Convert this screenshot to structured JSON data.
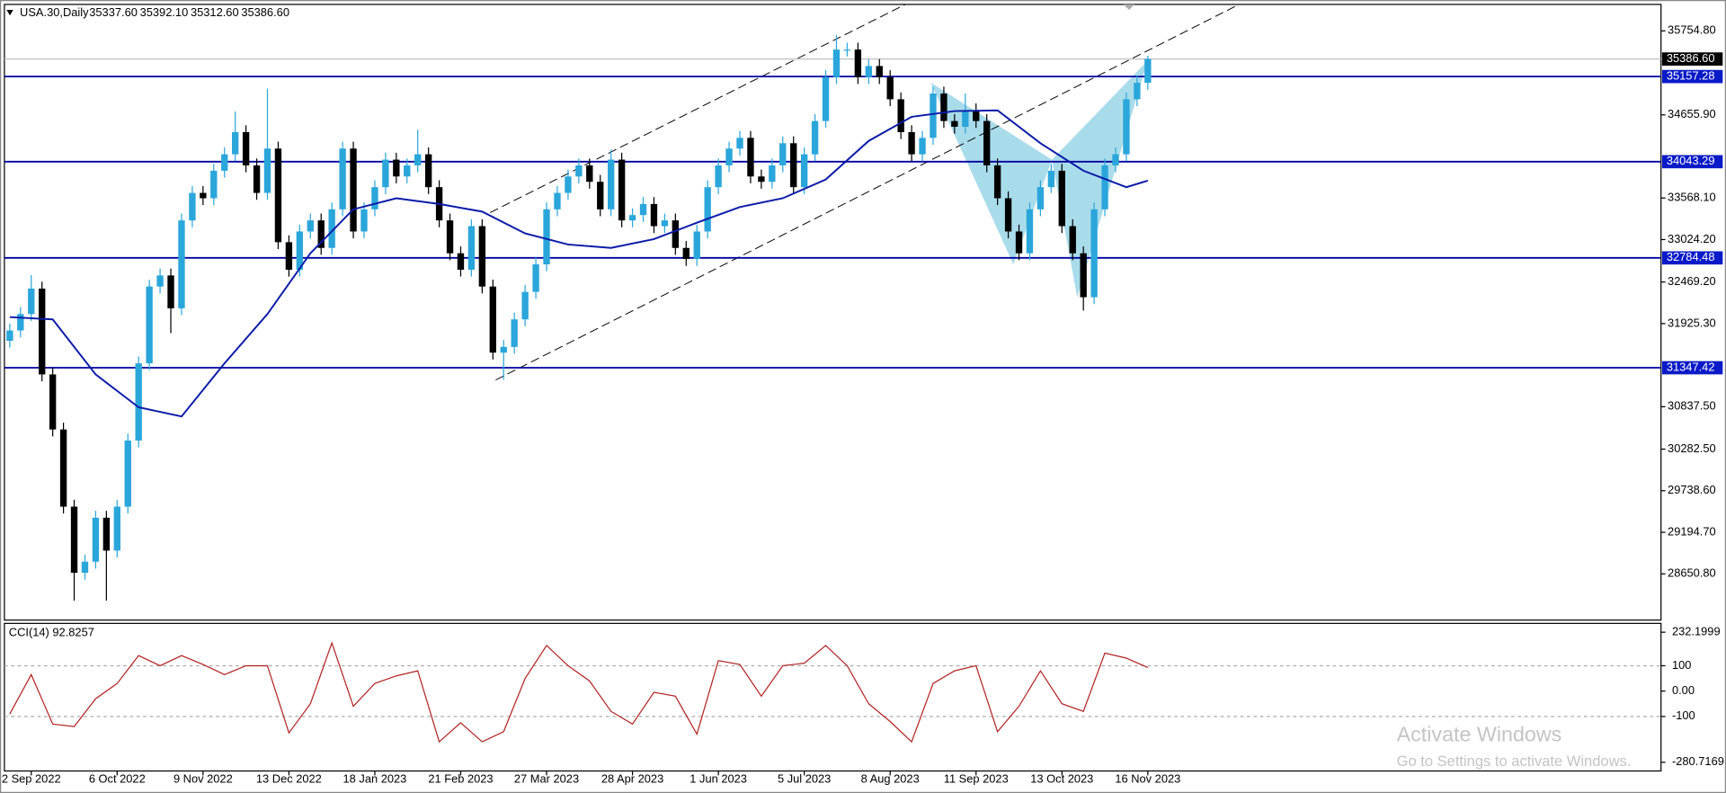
{
  "header": {
    "symbol": "USA.30,Daily",
    "quote": [
      "35337.60",
      "35392.10",
      "35312.60",
      "35386.60"
    ]
  },
  "chart_data": [
    {
      "type": "candlestick",
      "up_color": "#2aa6db",
      "down_color": "#000000",
      "xlim": [
        -0.5,
        153.8
      ],
      "xticks": [
        {
          "value": 2,
          "label": "2 Sep 2022"
        },
        {
          "value": 10,
          "label": "6 Oct 2022"
        },
        {
          "value": 18,
          "label": "9 Nov 2022"
        },
        {
          "value": 26,
          "label": "13 Dec 2022"
        },
        {
          "value": 34,
          "label": "18 Jan 2023"
        },
        {
          "value": 42,
          "label": "21 Feb 2023"
        },
        {
          "value": 50,
          "label": "27 Mar 2023"
        },
        {
          "value": 58,
          "label": "28 Apr 2023"
        },
        {
          "value": 66,
          "label": "1 Jun 2023"
        },
        {
          "value": 74,
          "label": "5 Jul 2023"
        },
        {
          "value": 82,
          "label": "8 Aug 2023"
        },
        {
          "value": 90,
          "label": "11 Sep 2023"
        },
        {
          "value": 98,
          "label": "13 Oct 2023"
        },
        {
          "value": 106,
          "label": "16 Nov 2023"
        }
      ],
      "ylim": [
        28046,
        36101
      ],
      "yticks": [
        {
          "value": 35754.8,
          "label": "35754.80"
        },
        {
          "value": 34655.9,
          "label": "34655.90"
        },
        {
          "value": 33568.1,
          "label": "33568.10"
        },
        {
          "value": 33024.2,
          "label": "33024.20"
        },
        {
          "value": 32469.2,
          "label": "32469.20"
        },
        {
          "value": 31925.3,
          "label": "31925.30"
        },
        {
          "value": 30837.5,
          "label": "30837.50"
        },
        {
          "value": 30282.5,
          "label": "30282.50"
        },
        {
          "value": 29738.6,
          "label": "29738.60"
        },
        {
          "value": 29194.7,
          "label": "29194.70"
        },
        {
          "value": 28650.8,
          "label": "28650.80"
        }
      ],
      "open": [
        31700,
        31835,
        32050,
        32383,
        31260,
        30540,
        29530,
        28665,
        28810,
        29385,
        28955,
        29530,
        30395,
        31405,
        32410,
        32555,
        32125,
        33275,
        33635,
        33565,
        33925,
        34140,
        34430,
        33995,
        33635,
        34215,
        32990,
        32630,
        33130,
        33275,
        32915,
        33420,
        34215,
        33130,
        33420,
        33710,
        34070,
        33850,
        33995,
        34140,
        33710,
        33275,
        32845,
        32630,
        33200,
        32410,
        31545,
        31620,
        31980,
        32340,
        32700,
        33420,
        33635,
        33850,
        33995,
        33780,
        33420,
        34070,
        33275,
        33345,
        33490,
        33200,
        33275,
        32915,
        32770,
        33130,
        33710,
        33995,
        34215,
        34355,
        33850,
        33780,
        33995,
        34285,
        33710,
        34140,
        34575,
        35150,
        35510,
        35510,
        35150,
        35295,
        35150,
        34860,
        34430,
        34140,
        34355,
        34935,
        34575,
        34500,
        34715,
        34575,
        33995,
        33565,
        33130,
        32845,
        33420,
        33710,
        33925,
        33200,
        32845,
        32270,
        33420,
        33995,
        34140,
        34860,
        35075
      ],
      "high": [
        31925,
        32140,
        32560,
        32473,
        31350,
        30630,
        29620,
        28900,
        29475,
        29475,
        29620,
        30485,
        31495,
        32500,
        32645,
        32645,
        33365,
        33725,
        33725,
        34015,
        34230,
        34700,
        34520,
        34085,
        35000,
        34305,
        33080,
        33220,
        33365,
        33365,
        33510,
        34305,
        34305,
        33510,
        33800,
        34160,
        34160,
        34085,
        34460,
        34230,
        33800,
        33365,
        32935,
        33290,
        33290,
        32500,
        31710,
        32070,
        32430,
        32790,
        33510,
        33725,
        33940,
        34085,
        34085,
        33870,
        34200,
        34160,
        33435,
        33580,
        33580,
        33365,
        33365,
        33005,
        33220,
        33800,
        34085,
        34305,
        34445,
        34445,
        33940,
        34085,
        34375,
        34375,
        34230,
        34665,
        35240,
        35700,
        35600,
        35600,
        35385,
        35385,
        35240,
        34950,
        34520,
        34445,
        35025,
        35025,
        34665,
        34935,
        34805,
        34665,
        34085,
        33655,
        33220,
        33510,
        33800,
        34015,
        34015,
        33290,
        32935,
        33510,
        34085,
        34230,
        34950,
        35165,
        35430
      ],
      "low": [
        31610,
        31745,
        31960,
        31170,
        30450,
        29440,
        28300,
        28575,
        28720,
        28300,
        28865,
        29440,
        30305,
        31315,
        32320,
        31800,
        32035,
        33185,
        33475,
        33475,
        33835,
        34050,
        33905,
        33545,
        33545,
        32900,
        32540,
        32540,
        33040,
        32825,
        32825,
        33330,
        33040,
        33040,
        33330,
        33620,
        33760,
        33760,
        33905,
        33620,
        33185,
        32755,
        32540,
        32540,
        32320,
        31455,
        31190,
        31530,
        31890,
        32250,
        32610,
        33330,
        33545,
        33760,
        33690,
        33330,
        33330,
        33185,
        33185,
        33255,
        33110,
        33110,
        32825,
        32680,
        32680,
        33040,
        33620,
        33905,
        34125,
        33760,
        33690,
        33690,
        33905,
        33620,
        33620,
        34050,
        34485,
        35060,
        35420,
        35060,
        35060,
        35060,
        34770,
        34340,
        34050,
        34050,
        34265,
        34485,
        34410,
        34410,
        34485,
        33905,
        33475,
        33040,
        32755,
        32755,
        33330,
        33635,
        33110,
        32755,
        32095,
        32180,
        33330,
        33905,
        34050,
        34770,
        34985
      ],
      "close": [
        31835,
        32050,
        32383,
        31260,
        30540,
        29530,
        28665,
        28810,
        29385,
        28955,
        29530,
        30395,
        31405,
        32410,
        32555,
        32125,
        33275,
        33635,
        33565,
        33925,
        34140,
        34430,
        33995,
        33635,
        34215,
        32990,
        32630,
        33130,
        33275,
        32915,
        33420,
        34215,
        33130,
        33420,
        33710,
        34070,
        33850,
        33995,
        34140,
        33710,
        33275,
        32845,
        32630,
        33200,
        32410,
        31545,
        31620,
        31980,
        32340,
        32700,
        33420,
        33635,
        33850,
        33995,
        33780,
        33420,
        34070,
        33275,
        33345,
        33490,
        33200,
        33275,
        32915,
        32770,
        33130,
        33710,
        33995,
        34215,
        34355,
        33850,
        33780,
        33995,
        34285,
        33710,
        34140,
        34575,
        35150,
        35510,
        35510,
        35150,
        35295,
        35150,
        34860,
        34430,
        34140,
        34355,
        34935,
        34575,
        34500,
        34715,
        34575,
        33995,
        33565,
        33130,
        32845,
        33420,
        33710,
        33925,
        33200,
        32845,
        32270,
        33420,
        33995,
        34140,
        34860,
        35075,
        35386.6
      ],
      "ma": {
        "color": "#0a1aa8",
        "x": [
          0,
          4,
          8,
          12,
          16,
          20,
          24,
          28,
          32,
          36,
          40,
          44,
          48,
          52,
          56,
          60,
          64,
          68,
          72,
          76,
          80,
          84,
          88,
          92,
          96,
          100,
          104,
          106
        ],
        "values": [
          32010,
          31980,
          31260,
          30830,
          30710,
          31405,
          32050,
          32845,
          33420,
          33565,
          33490,
          33390,
          33105,
          32960,
          32915,
          33030,
          33245,
          33450,
          33565,
          33810,
          34315,
          34630,
          34705,
          34715,
          34285,
          33925,
          33710,
          33795
        ]
      },
      "levels": {
        "color": "#0000a0",
        "values": [
          35157.28,
          34043.29,
          32784.48,
          31347.42
        ]
      },
      "current_price": {
        "value": 35386.6,
        "label": "35386.60"
      }
    },
    {
      "type": "line",
      "title": "CCI(14) 92.8257",
      "color": "#b22222",
      "ylim": [
        -315,
        267
      ],
      "yticks": [
        232.1999,
        100,
        {
          "value": 0,
          "label": "0.00"
        },
        -100,
        -280.7169
      ],
      "grid_lines": [
        100,
        -100
      ],
      "x": [
        0,
        2,
        4,
        6,
        8,
        10,
        12,
        14,
        16,
        18,
        20,
        22,
        24,
        26,
        28,
        30,
        32,
        34,
        36,
        38,
        40,
        42,
        44,
        46,
        48,
        50,
        52,
        54,
        56,
        58,
        60,
        62,
        64,
        66,
        68,
        70,
        72,
        74,
        76,
        78,
        80,
        82,
        84,
        86,
        88,
        90,
        92,
        94,
        96,
        98,
        100,
        102,
        104,
        106
      ],
      "values": [
        -90,
        65,
        -130,
        -140,
        -30,
        30,
        140,
        100,
        140,
        105,
        65,
        100,
        100,
        -165,
        -50,
        190,
        -60,
        30,
        60,
        80,
        -200,
        -125,
        -200,
        -160,
        50,
        180,
        100,
        40,
        -80,
        -130,
        -5,
        -20,
        -170,
        120,
        105,
        -20,
        100,
        110,
        180,
        100,
        -50,
        -120,
        -200,
        30,
        80,
        100,
        -160,
        -60,
        80,
        -50,
        -80,
        150,
        130,
        92.8257
      ]
    }
  ],
  "watermark": [
    "Activate Windows",
    "Go to Settings to activate Windows."
  ]
}
